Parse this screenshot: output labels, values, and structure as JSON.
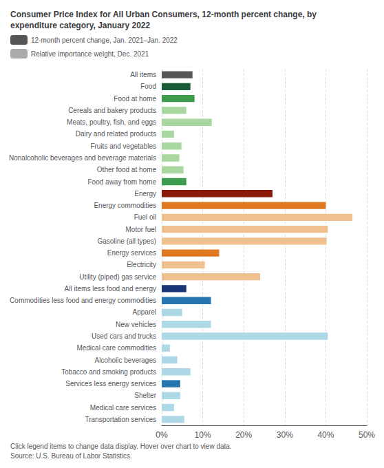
{
  "chart_data": {
    "type": "bar",
    "orientation": "horizontal",
    "title": "Consumer Price Index for All Urban Consumers, 12-month percent change, by\nexpenditure category, January 2022",
    "annotations": [
      "Click legend items to change data display. Hover over chart to view data.",
      "Source: U.S. Bureau of Labor Statistics."
    ],
    "categories": [
      "All items",
      "Food",
      "Food at home",
      "Cereals and bakery products",
      "Meats, poultry, fish, and eggs",
      "Dairy and related products",
      "Fruits and vegetables",
      "Nonalcoholic beverages and beverage materials",
      "Other food at home",
      "Food away from home",
      "Energy",
      "Energy commodities",
      "Fuel oil",
      "Motor fuel",
      "Gasoline (all types)",
      "Energy services",
      "Electricity",
      "Utility (piped) gas service",
      "All items less food and energy",
      "Commodities less food and energy commodities",
      "Apparel",
      "New vehicles",
      "Used cars and trucks",
      "Medical care commodities",
      "Alcoholic beverages",
      "Tobacco and smoking products",
      "Services less energy services",
      "Shelter",
      "Medical care services",
      "Transportation services"
    ],
    "series": [
      {
        "name": "12-month percent change, Jan. 2021–Jan. 2022",
        "color": "#555555",
        "colors": [
          "#555555",
          "#1a5c38",
          "#3d9c4e",
          "#a8d8a0",
          "#a8d8a0",
          "#a8d8a0",
          "#a8d8a0",
          "#a8d8a0",
          "#a8d8a0",
          "#3d9c4e",
          "#8b1a0a",
          "#e07820",
          "#f0c090",
          "#f0c090",
          "#f0c090",
          "#e07820",
          "#f0c090",
          "#f0c090",
          "#1a3575",
          "#2475b0",
          "#add8e6",
          "#add8e6",
          "#add8e6",
          "#add8e6",
          "#add8e6",
          "#add8e6",
          "#2475b0",
          "#add8e6",
          "#add8e6",
          "#add8e6"
        ],
        "values": [
          7.5,
          7.0,
          8.0,
          6.0,
          12.2,
          3.0,
          4.8,
          4.3,
          5.3,
          6.0,
          27.0,
          40.0,
          46.5,
          40.5,
          40.2,
          14.0,
          10.5,
          24.0,
          6.0,
          12.0,
          5.0,
          12.0,
          40.5,
          2.0,
          3.8,
          7.0,
          4.5,
          4.5,
          3.0,
          5.5
        ]
      },
      {
        "name": "Relative importance weight, Dec. 2021",
        "color": "#aaaaaa",
        "values": [
          null,
          null,
          null,
          null,
          null,
          null,
          null,
          null,
          null,
          null,
          null,
          null,
          null,
          null,
          null,
          null,
          null,
          null,
          null,
          null,
          null,
          null,
          null,
          null,
          null,
          null,
          null,
          null,
          null,
          null
        ]
      }
    ],
    "xlim": [
      0,
      50
    ],
    "xticks": [
      {
        "value": 0,
        "label": "0%"
      },
      {
        "value": 10,
        "label": "10%"
      },
      {
        "value": 20,
        "label": "20%"
      },
      {
        "value": 30,
        "label": "30%"
      },
      {
        "value": 40,
        "label": "40%"
      },
      {
        "value": 50,
        "label": "50%"
      }
    ],
    "grid": true,
    "legend": "top left"
  }
}
